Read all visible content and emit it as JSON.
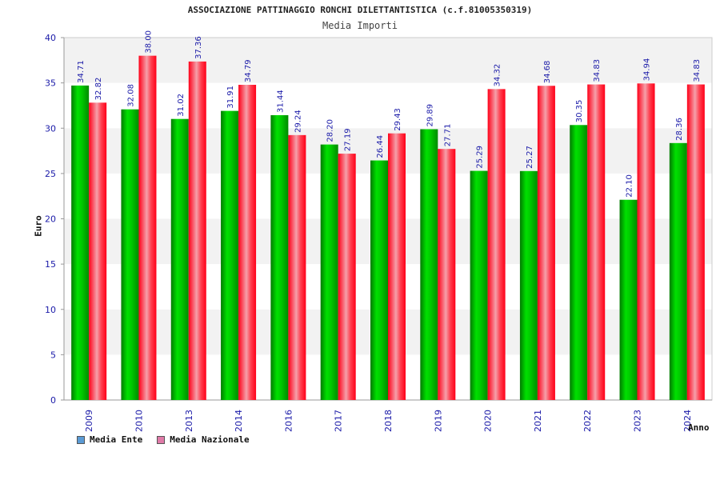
{
  "chart_data": {
    "type": "bar",
    "title": "ASSOCIAZIONE PATTINAGGIO RONCHI DILETTANTISTICA (c.f.81005350319)",
    "subtitle": "Media Importi",
    "xlabel": "Anno",
    "ylabel": "Euro",
    "ylim": [
      0,
      40
    ],
    "yticks": [
      "0",
      "5",
      "10",
      "15",
      "20",
      "25",
      "30",
      "35",
      "40"
    ],
    "categories": [
      "2009",
      "2010",
      "2013",
      "2014",
      "2016",
      "2017",
      "2018",
      "2019",
      "2020",
      "2021",
      "2022",
      "2023",
      "2024"
    ],
    "series": [
      {
        "name": "Media Ente",
        "color": "#00cc00",
        "values": [
          34.71,
          32.08,
          31.02,
          31.91,
          31.44,
          28.2,
          26.44,
          29.89,
          25.29,
          25.27,
          30.35,
          22.1,
          28.36
        ],
        "labels": [
          "34.71",
          "32.08",
          "31.02",
          "31.91",
          "31.44",
          "28.20",
          "26.44",
          "29.89",
          "25.29",
          "25.27",
          "30.35",
          "22.10",
          "28.36"
        ]
      },
      {
        "name": "Media Nazionale",
        "color": "#ff1a2e",
        "values": [
          32.82,
          38.0,
          37.36,
          34.79,
          29.24,
          27.19,
          29.43,
          27.71,
          34.32,
          34.68,
          34.83,
          34.94,
          34.83
        ],
        "labels": [
          "32.82",
          "38.00",
          "37.36",
          "34.79",
          "29.24",
          "27.19",
          "29.43",
          "27.71",
          "34.32",
          "34.68",
          "34.83",
          "34.94",
          "34.83"
        ]
      }
    ],
    "grid": true,
    "legend_position": "bottom-left",
    "legend_swatch_colors": [
      "#5b9bd5",
      "#e07aa8"
    ]
  }
}
